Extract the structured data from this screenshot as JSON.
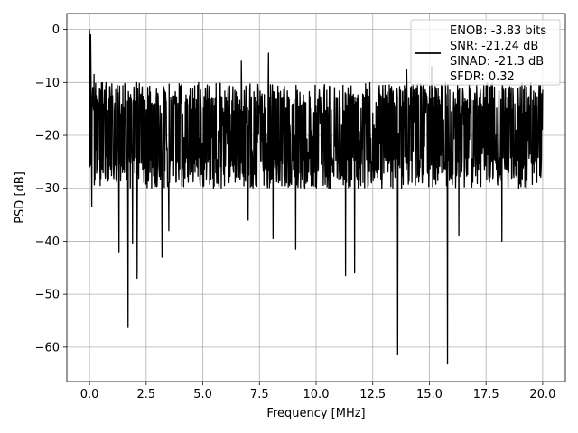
{
  "chart_data": {
    "type": "line",
    "title": "",
    "xlabel": "Frequency [MHz]",
    "ylabel": "PSD [dB]",
    "xlim": [
      -1.0,
      21.0
    ],
    "ylim": [
      -66.5,
      3.0
    ],
    "x_ticks": [
      0.0,
      2.5,
      5.0,
      7.5,
      10.0,
      12.5,
      15.0,
      17.5,
      20.0
    ],
    "x_tick_labels": [
      "0.0",
      "2.5",
      "5.0",
      "7.5",
      "10.0",
      "12.5",
      "15.0",
      "17.5",
      "20.0"
    ],
    "y_ticks": [
      0,
      -10,
      -20,
      -30,
      -40,
      -50,
      -60
    ],
    "y_tick_labels": [
      "0",
      "−10",
      "−20",
      "−30",
      "−40",
      "−50",
      "−60"
    ],
    "grid": true,
    "legend_placement": "top-right",
    "series": [
      {
        "name": "ENOB: -3.83 bits\nSNR: -21.24 dB\nSINAD: -21.3 dB\nSFDR: 0.32",
        "color": "#000000",
        "x_range": [
          0.0,
          20.0
        ],
        "noise_floor_db": -21.0,
        "noise_band_db": [
          -30,
          -10
        ],
        "peaks": [
          {
            "x": 0.0,
            "y": 0.0
          },
          {
            "x": 0.05,
            "y": -1.0
          },
          {
            "x": 0.2,
            "y": -8.5
          }
        ],
        "notable_minima": [
          {
            "x": 0.1,
            "y": -33.5
          },
          {
            "x": 1.3,
            "y": -42.0
          },
          {
            "x": 1.7,
            "y": -56.3
          },
          {
            "x": 1.9,
            "y": -40.5
          },
          {
            "x": 2.1,
            "y": -47.0
          },
          {
            "x": 3.2,
            "y": -43.0
          },
          {
            "x": 3.5,
            "y": -38.0
          },
          {
            "x": 7.0,
            "y": -36.0
          },
          {
            "x": 8.1,
            "y": -39.5
          },
          {
            "x": 9.1,
            "y": -41.5
          },
          {
            "x": 11.3,
            "y": -46.5
          },
          {
            "x": 11.7,
            "y": -46.0
          },
          {
            "x": 13.6,
            "y": -61.3
          },
          {
            "x": 15.8,
            "y": -63.2
          },
          {
            "x": 16.3,
            "y": -39.0
          },
          {
            "x": 18.2,
            "y": -40.0
          }
        ],
        "notable_maxima": [
          {
            "x": 6.7,
            "y": -6.0
          },
          {
            "x": 7.9,
            "y": -4.5
          },
          {
            "x": 14.0,
            "y": -7.5
          },
          {
            "x": 15.1,
            "y": -7.0
          }
        ]
      }
    ]
  }
}
